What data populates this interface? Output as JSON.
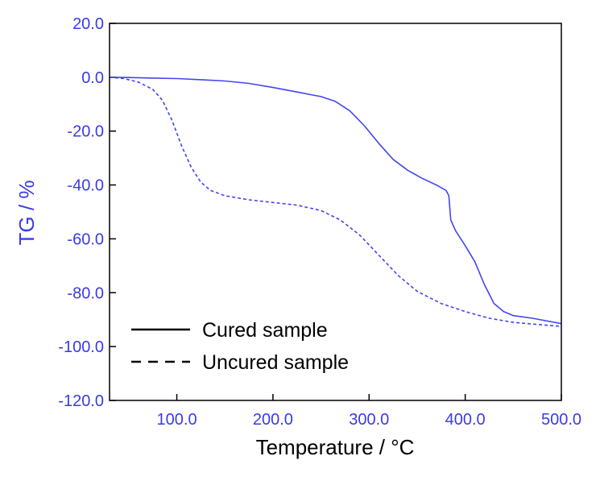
{
  "chart_data": {
    "type": "line",
    "xlabel": "Temperature / °C",
    "ylabel": "TG / %",
    "xlim": [
      30,
      500
    ],
    "ylim": [
      -120,
      20
    ],
    "x_ticks": [
      100,
      200,
      300,
      400,
      500
    ],
    "x_tick_labels": [
      "100.0",
      "200.0",
      "300.0",
      "400.0",
      "500.0"
    ],
    "y_ticks": [
      20,
      0,
      -20,
      -40,
      -60,
      -80,
      -100,
      -120
    ],
    "y_tick_labels": [
      "20.0",
      "0.0",
      "-20.0",
      "-40.0",
      "-60.0",
      "-80.0",
      "-100.0",
      "-120.0"
    ],
    "grid": false,
    "legend_position": "bottom-left",
    "legend_line_color": "#000000",
    "series_color": "#4545ee",
    "axis_label_color": "#3a3ae8",
    "series": [
      {
        "name": "Cured sample",
        "style": "solid",
        "x": [
          30,
          50,
          75,
          100,
          125,
          150,
          175,
          200,
          225,
          250,
          265,
          280,
          295,
          310,
          325,
          340,
          355,
          370,
          380,
          383,
          385,
          390,
          400,
          410,
          420,
          430,
          440,
          450,
          470,
          500
        ],
        "y": [
          0,
          -0.1,
          -0.3,
          -0.5,
          -0.9,
          -1.4,
          -2.3,
          -3.8,
          -5.5,
          -7.2,
          -9.0,
          -12.5,
          -18.0,
          -24.5,
          -30.5,
          -34.5,
          -37.5,
          -40.0,
          -42.0,
          -44.0,
          -53.0,
          -57.0,
          -62.5,
          -68.5,
          -77.0,
          -84.0,
          -87.0,
          -88.5,
          -89.5,
          -91.5
        ]
      },
      {
        "name": "Uncured sample",
        "style": "dashed",
        "x": [
          30,
          45,
          60,
          75,
          85,
          95,
          105,
          115,
          125,
          135,
          150,
          175,
          200,
          225,
          250,
          270,
          290,
          310,
          330,
          350,
          375,
          400,
          425,
          450,
          475,
          500
        ],
        "y": [
          0,
          -0.5,
          -1.8,
          -4.5,
          -8.5,
          -16.0,
          -25.5,
          -33.5,
          -39.0,
          -42.0,
          -44.0,
          -45.5,
          -46.5,
          -47.5,
          -49.5,
          -53.0,
          -58.5,
          -66.0,
          -73.5,
          -79.5,
          -84.0,
          -87.0,
          -89.5,
          -91.0,
          -91.8,
          -92.5
        ]
      }
    ]
  }
}
